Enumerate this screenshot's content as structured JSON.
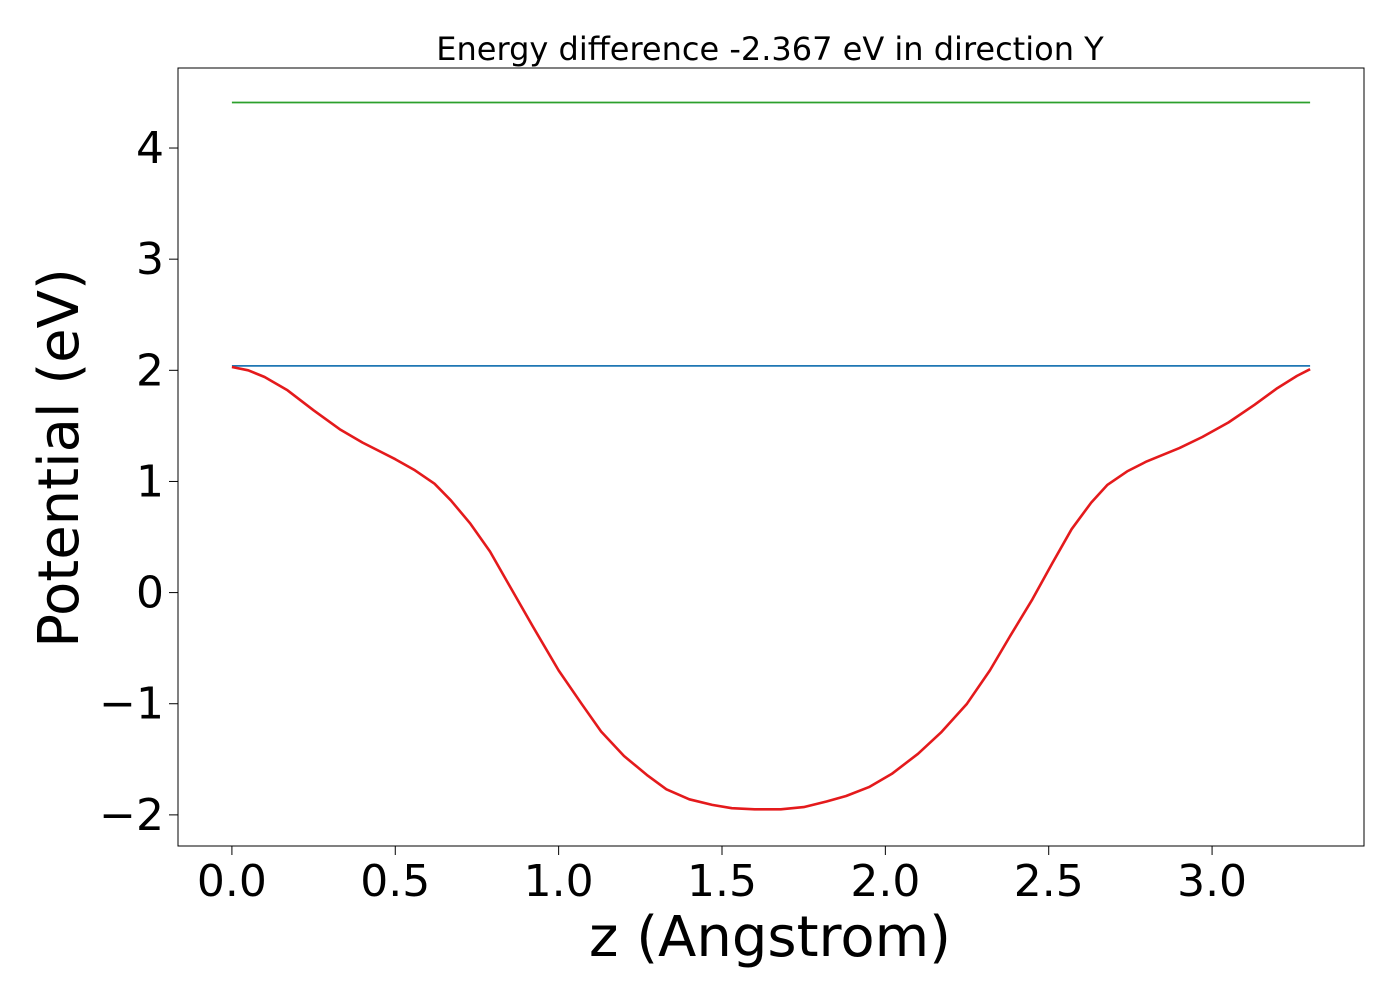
{
  "chart_data": {
    "type": "line",
    "title": "Energy difference -2.367 eV in direction Y",
    "xlabel": "z (Angstrom)",
    "ylabel": "Potential (eV)",
    "xlim": [
      -0.165,
      3.465
    ],
    "ylim": [
      -2.28,
      4.72
    ],
    "xticks": [
      0.0,
      0.5,
      1.0,
      1.5,
      2.0,
      2.5,
      3.0
    ],
    "xtick_labels": [
      "0.0",
      "0.5",
      "1.0",
      "1.5",
      "2.0",
      "2.5",
      "3.0"
    ],
    "yticks": [
      -2,
      -1,
      0,
      1,
      2,
      3,
      4
    ],
    "ytick_labels": [
      "−2",
      "−1",
      "0",
      "1",
      "2",
      "3",
      "4"
    ],
    "grid": false,
    "legend": null,
    "series": [
      {
        "color": "#2ca02c",
        "x": [
          0.0,
          3.3
        ],
        "y": [
          4.41,
          4.41
        ]
      },
      {
        "color": "#1f77b4",
        "x": [
          0.0,
          3.3
        ],
        "y": [
          2.04,
          2.04
        ]
      },
      {
        "color": "#e41a1c",
        "x": [
          0.0,
          0.05,
          0.1,
          0.17,
          0.25,
          0.33,
          0.4,
          0.5,
          0.56,
          0.62,
          0.67,
          0.73,
          0.79,
          0.85,
          0.92,
          1.0,
          1.07,
          1.13,
          1.2,
          1.27,
          1.33,
          1.4,
          1.47,
          1.53,
          1.6,
          1.68,
          1.75,
          1.82,
          1.88,
          1.95,
          2.02,
          2.1,
          2.17,
          2.25,
          2.32,
          2.38,
          2.45,
          2.51,
          2.57,
          2.63,
          2.68,
          2.74,
          2.8,
          2.9,
          2.97,
          3.05,
          3.13,
          3.2,
          3.26,
          3.3
        ],
        "y": [
          2.03,
          2.0,
          1.94,
          1.82,
          1.64,
          1.47,
          1.35,
          1.2,
          1.1,
          0.98,
          0.83,
          0.62,
          0.37,
          0.06,
          -0.3,
          -0.7,
          -1.0,
          -1.25,
          -1.47,
          -1.64,
          -1.77,
          -1.86,
          -1.91,
          -1.94,
          -1.95,
          -1.95,
          -1.93,
          -1.88,
          -1.83,
          -1.75,
          -1.63,
          -1.45,
          -1.26,
          -1.0,
          -0.7,
          -0.4,
          -0.06,
          0.26,
          0.57,
          0.81,
          0.97,
          1.09,
          1.18,
          1.3,
          1.4,
          1.53,
          1.69,
          1.84,
          1.95,
          2.01
        ]
      }
    ]
  }
}
